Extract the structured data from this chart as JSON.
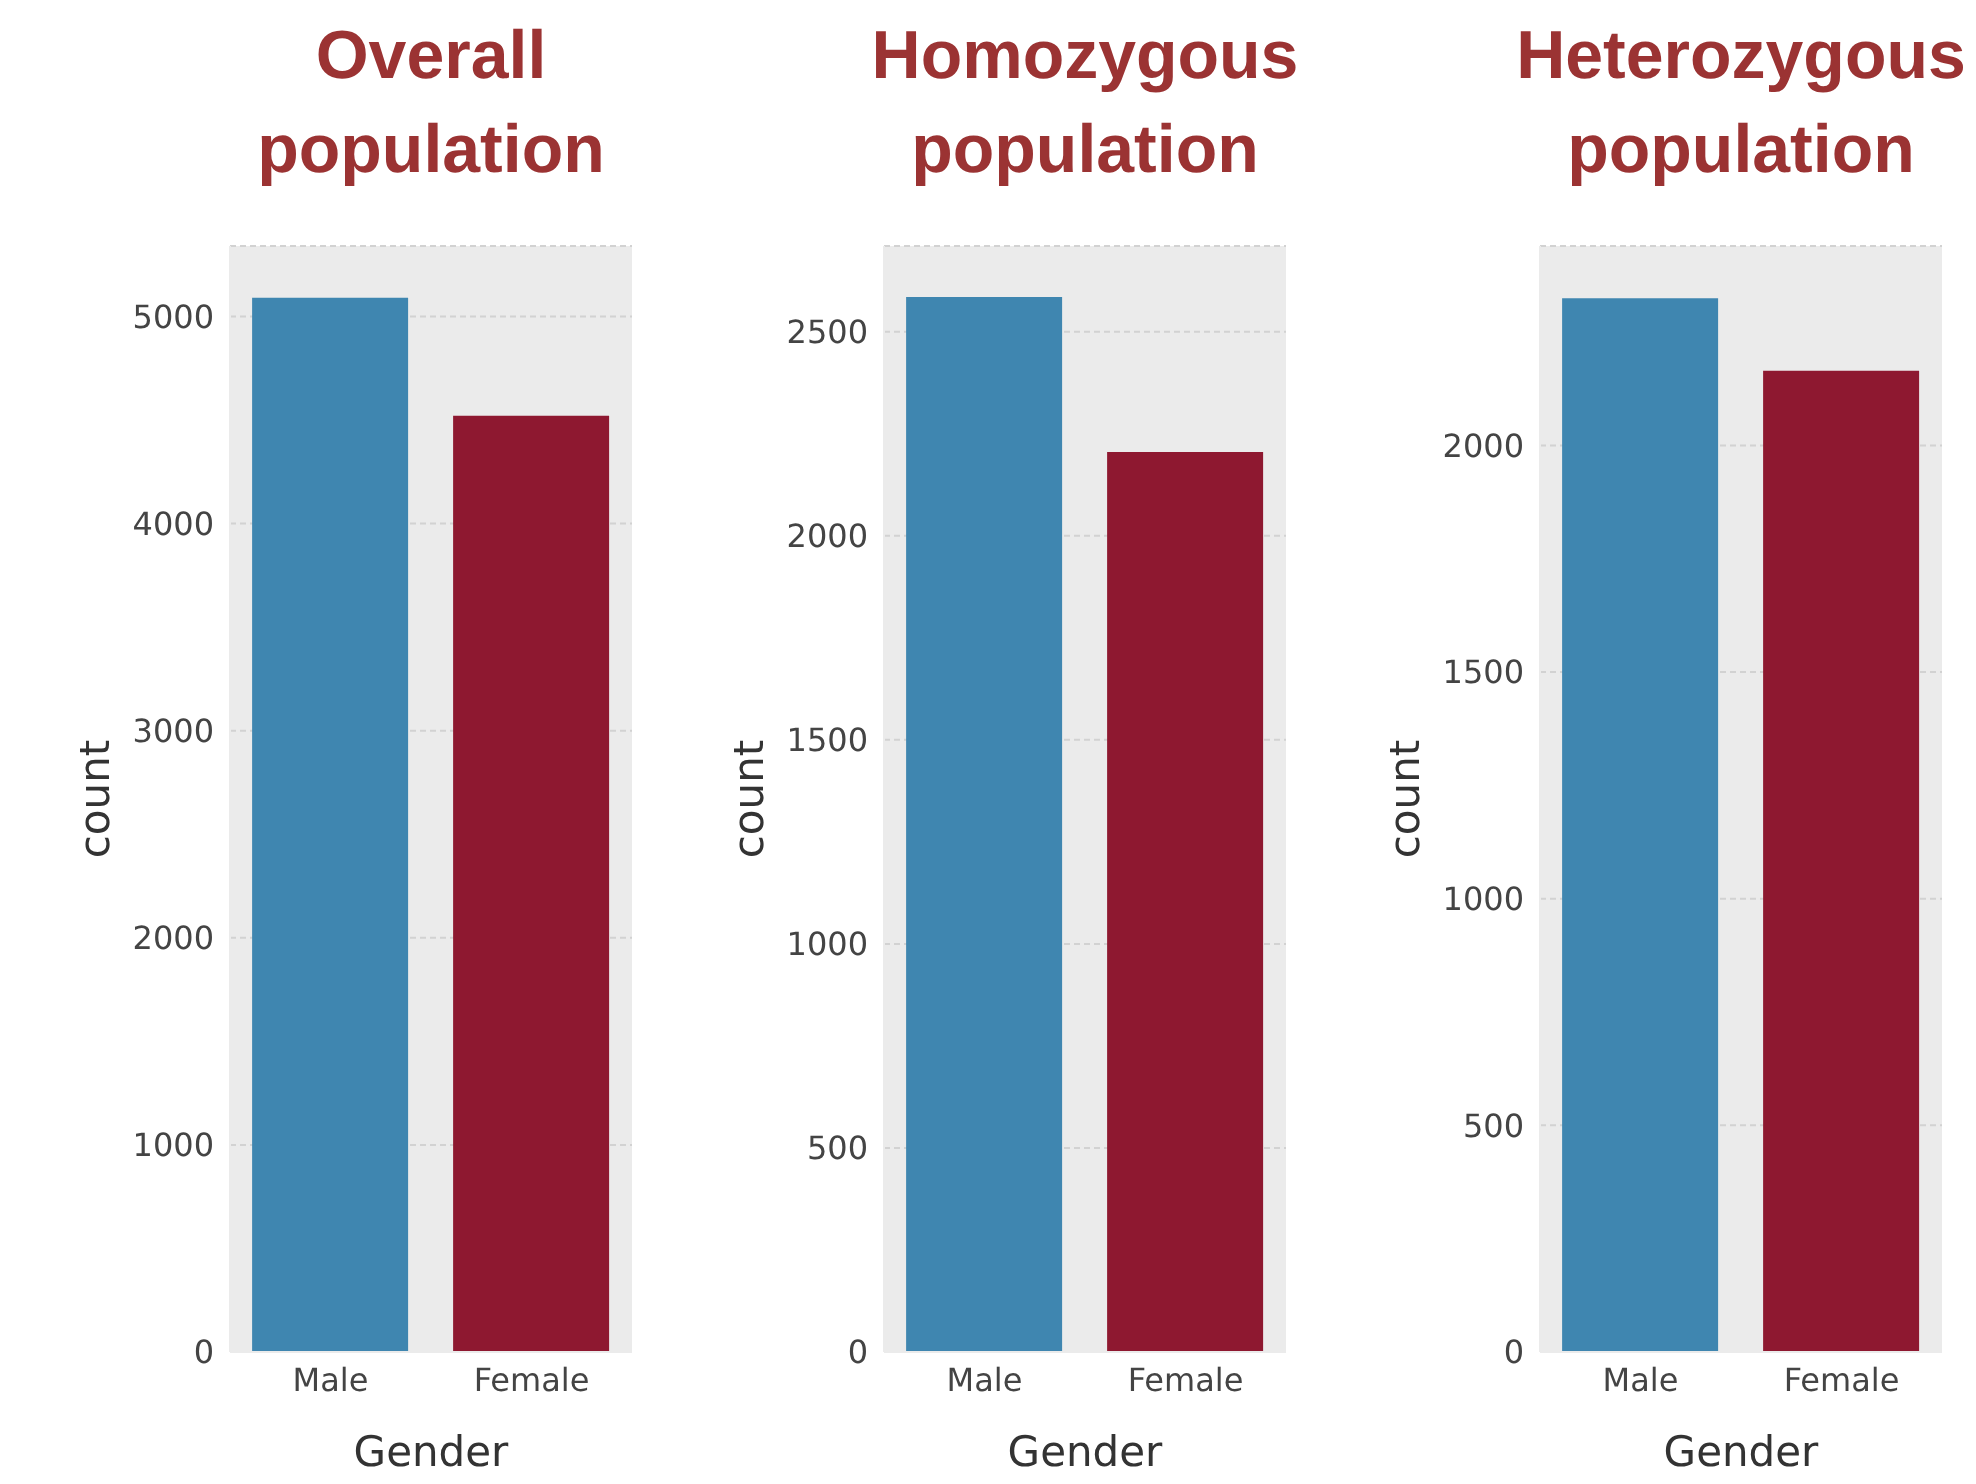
{
  "chart_data": [
    {
      "type": "bar",
      "title": "Overall population",
      "xlabel": "Gender",
      "ylabel": "count",
      "categories": [
        "Male",
        "Female"
      ],
      "values": [
        5090,
        4520
      ],
      "colors": [
        "#3f86b0",
        "#8e1830"
      ],
      "ylim": [
        0,
        5340
      ],
      "yticks": [
        0,
        1000,
        2000,
        3000,
        4000,
        5000
      ],
      "grid": "y"
    },
    {
      "type": "bar",
      "title": "Homozygous population",
      "xlabel": "Gender",
      "ylabel": "count",
      "categories": [
        "Male",
        "Female"
      ],
      "values": [
        2585,
        2205
      ],
      "colors": [
        "#3f86b0",
        "#8e1830"
      ],
      "ylim": [
        0,
        2710
      ],
      "yticks": [
        0,
        500,
        1000,
        1500,
        2000,
        2500
      ],
      "grid": "y"
    },
    {
      "type": "bar",
      "title": "Heterozygous population",
      "xlabel": "Gender",
      "ylabel": "count",
      "categories": [
        "Male",
        "Female"
      ],
      "values": [
        2325,
        2165
      ],
      "colors": [
        "#3f86b0",
        "#8e1830"
      ],
      "ylim": [
        0,
        2440
      ],
      "yticks": [
        0,
        500,
        1000,
        1500,
        2000
      ],
      "grid": "y"
    }
  ]
}
